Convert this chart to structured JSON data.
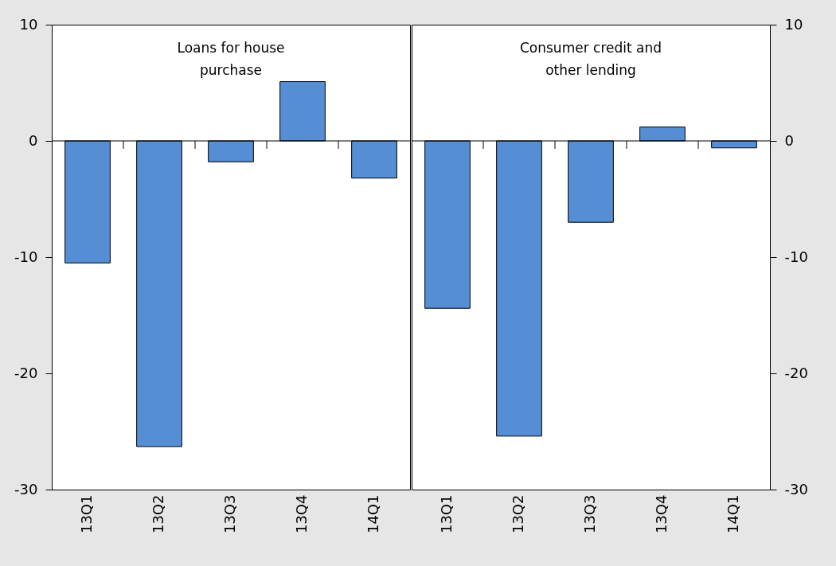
{
  "chart_data": [
    {
      "type": "bar",
      "categories": [
        "13Q1",
        "13Q2",
        "13Q3",
        "13Q4",
        "14Q1"
      ],
      "series": [
        {
          "color": "#558ed5",
          "values": [
            -10.5,
            -26.3,
            -1.8,
            5.1,
            -3.2
          ]
        }
      ],
      "ylim": [
        -30,
        10
      ],
      "yticks": [
        -30,
        -20,
        -10,
        0,
        10
      ],
      "annotations": [
        "Loans for house purchase"
      ],
      "ref_lines": [
        {
          "axis": "y",
          "value": 0,
          "color": "#000000"
        }
      ],
      "legend": false,
      "grid": false
    },
    {
      "type": "bar",
      "categories": [
        "13Q1",
        "13Q2",
        "13Q3",
        "13Q4",
        "14Q1"
      ],
      "series": [
        {
          "color": "#558ed5",
          "values": [
            -14.4,
            -25.4,
            -7.0,
            1.2,
            -0.6
          ]
        }
      ],
      "ylim": [
        -30,
        10
      ],
      "yticks": [
        -30,
        -20,
        -10,
        0,
        10
      ],
      "annotations": [
        "Consumer credit and other lending"
      ],
      "ref_lines": [
        {
          "axis": "y",
          "value": 0,
          "color": "#000000"
        }
      ],
      "legend": false,
      "grid": false
    }
  ]
}
